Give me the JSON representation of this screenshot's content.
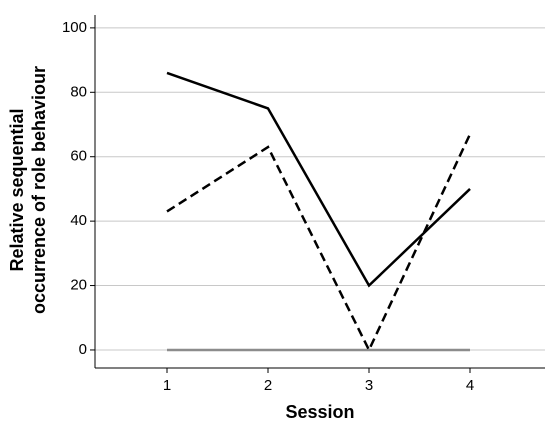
{
  "chart_data": {
    "type": "line",
    "xlabel": "Session",
    "ylabel": [
      "Relative sequential",
      "occurrence of role behaviour"
    ],
    "categories": [
      "1",
      "2",
      "3",
      "4"
    ],
    "series": [
      {
        "color": "#000000",
        "dash": "solid",
        "values": [
          86,
          75,
          20,
          50
        ]
      },
      {
        "color": "#000000",
        "dash": "dashed",
        "values": [
          43,
          63,
          0,
          67
        ]
      },
      {
        "color": "#8c8c8c",
        "dash": "solid",
        "values": [
          0,
          0,
          0,
          0
        ]
      }
    ],
    "ylim": [
      -5.6,
      104
    ],
    "yticks": [
      0,
      20,
      40,
      60,
      80,
      100
    ],
    "grid": true
  }
}
